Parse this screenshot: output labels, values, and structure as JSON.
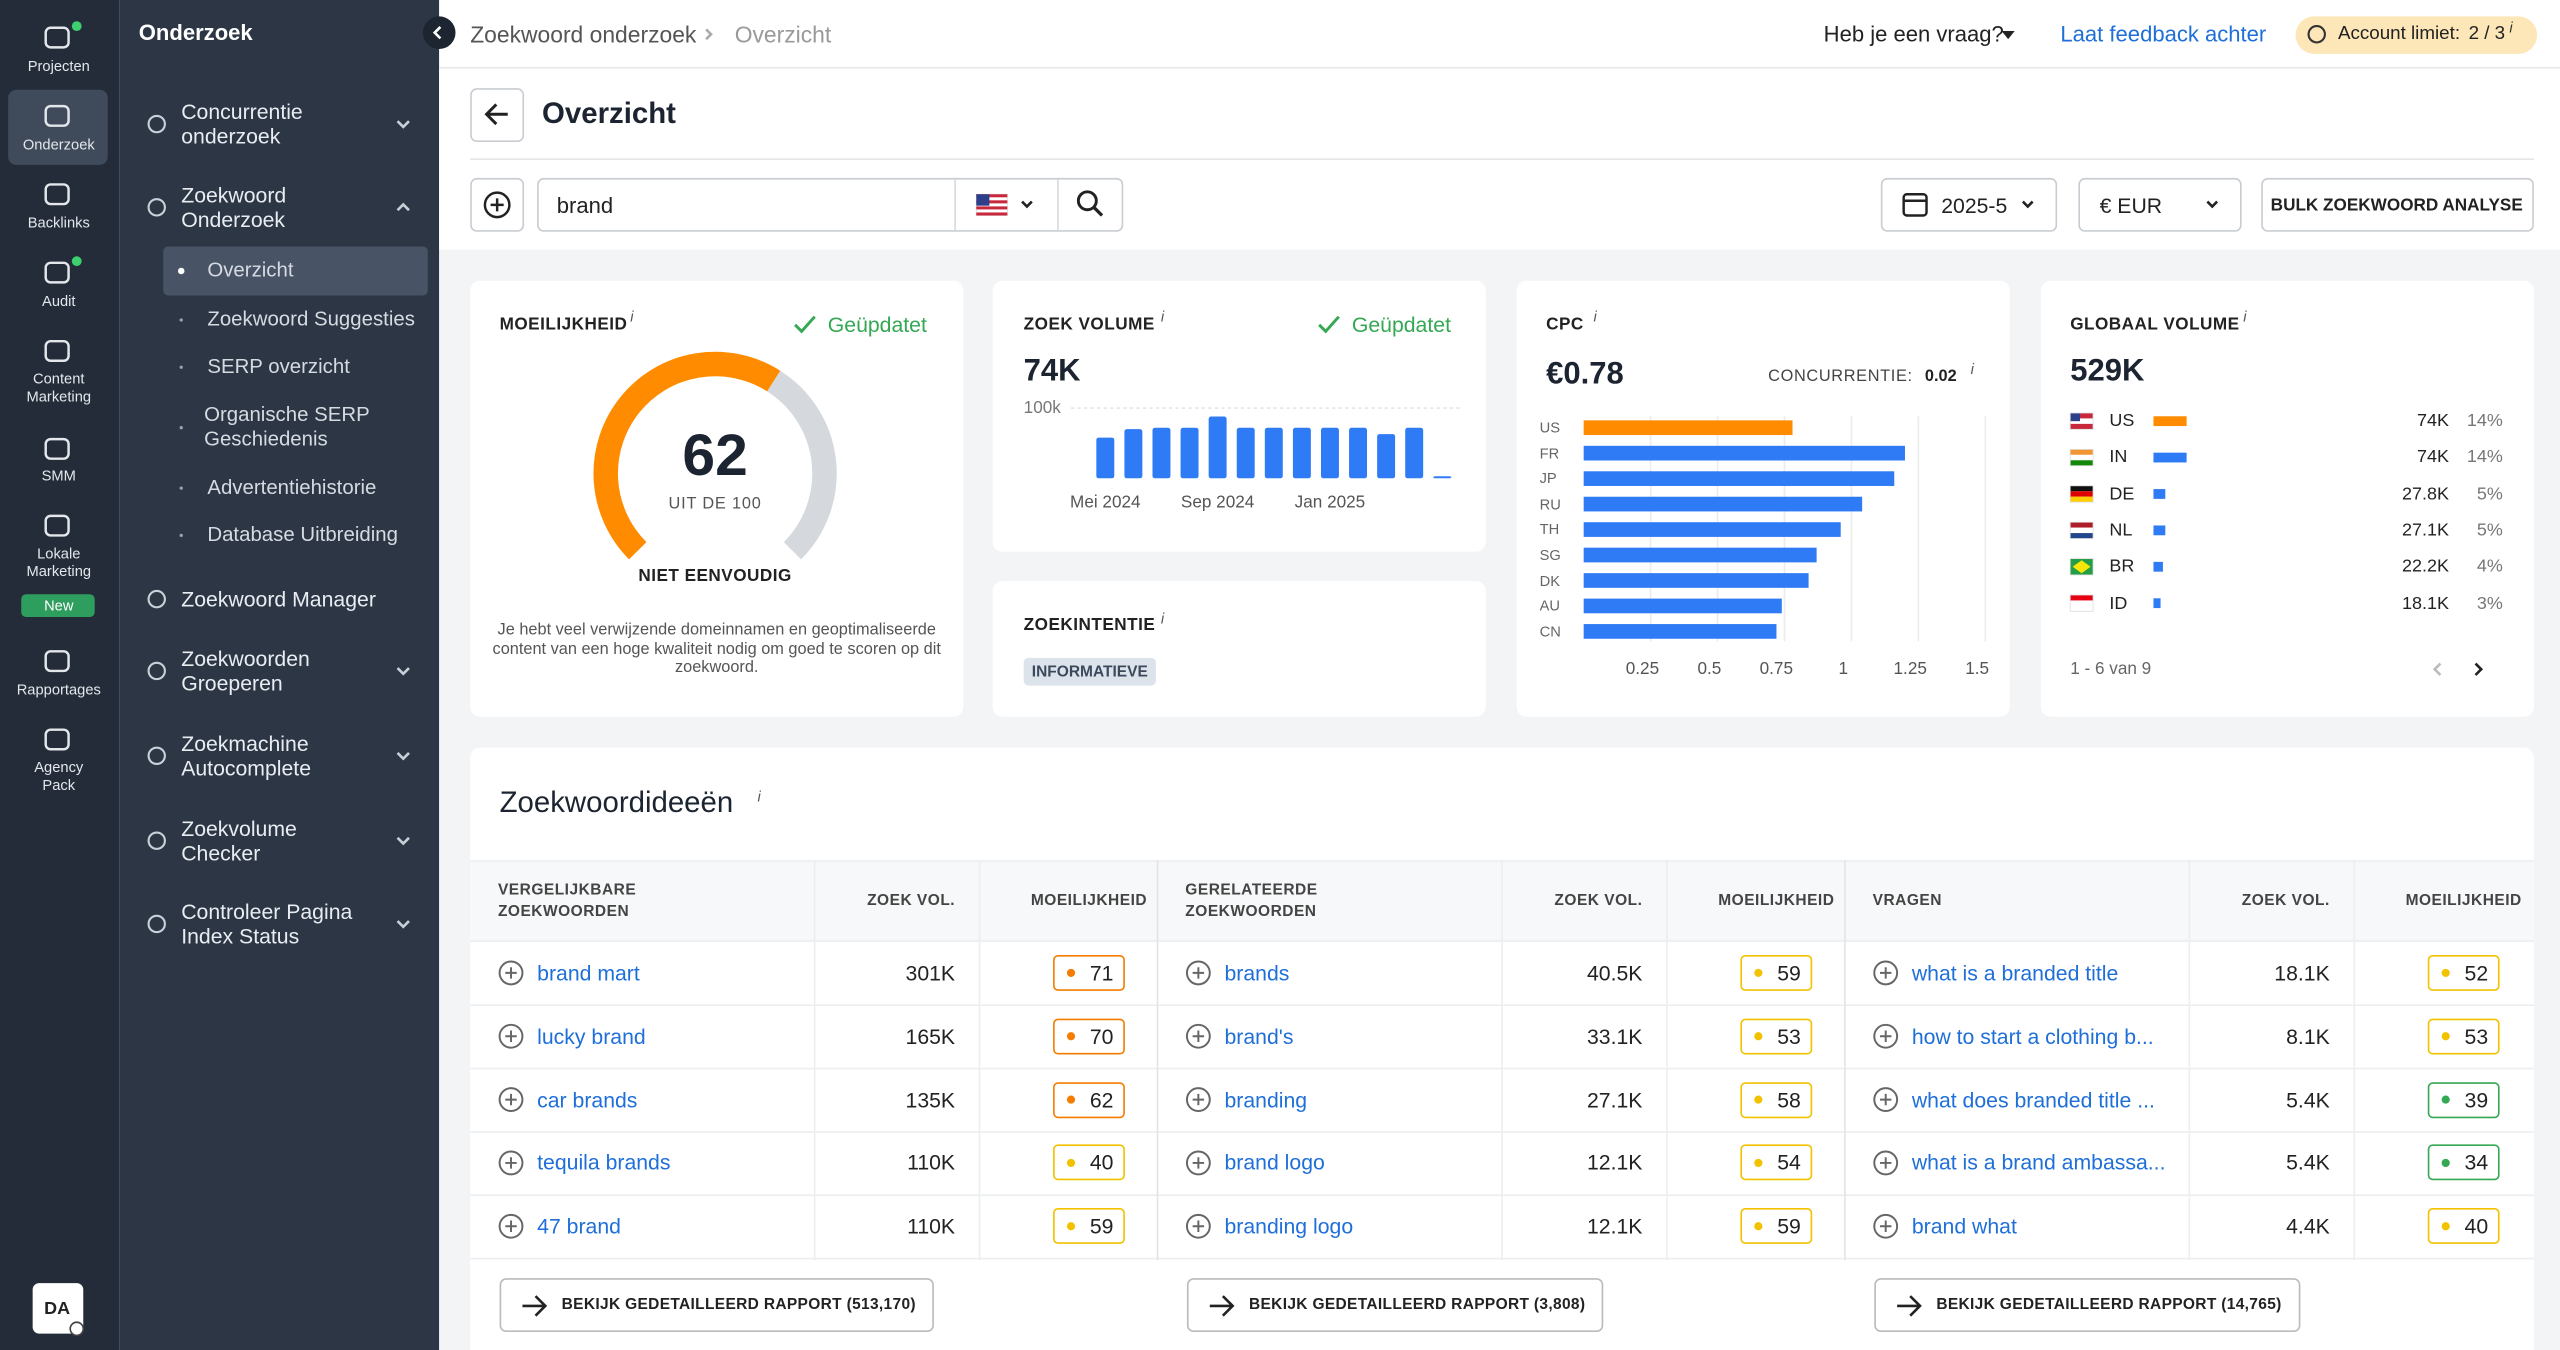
{
  "rail": {
    "items": [
      "Projecten",
      "Onderzoek",
      "Backlinks",
      "Audit",
      "Content\nMarketing",
      "SMM",
      "Lokale\nMarketing",
      "Rapportages",
      "Agency\nPack"
    ],
    "new_badge": "New",
    "avatar": "DA"
  },
  "menu": {
    "title": "Onderzoek",
    "items": [
      {
        "label": "Concurrentie\nonderzoek"
      },
      {
        "label": "Zoekwoord\nOnderzoek",
        "children": [
          "Overzicht",
          "Zoekwoord Suggesties",
          "SERP overzicht",
          "Organische SERP\nGeschiedenis",
          "Advertentiehistorie",
          "Database Uitbreiding"
        ]
      },
      {
        "label": "Zoekwoord Manager"
      },
      {
        "label": "Zoekwoorden\nGroeperen"
      },
      {
        "label": "Zoekmachine\nAutocomplete"
      },
      {
        "label": "Zoekvolume\nChecker"
      },
      {
        "label": "Controleer Pagina\nIndex Status"
      }
    ]
  },
  "header": {
    "breadcrumb": [
      "Zoekwoord onderzoek",
      "Overzicht"
    ],
    "help": "Heb je een vraag?",
    "feedback": "Laat feedback achter",
    "account_label": "Account limiet:",
    "account_value": "2 / 3"
  },
  "info": "i",
  "page_title": "Overzicht",
  "search": {
    "query": "brand",
    "date": "2025-5",
    "currency": "€ EUR",
    "bulk": "BULK ZOEKWOORD ANALYSE"
  },
  "difficulty": {
    "title": "MOEILIJKHEID",
    "status": "Geüpdatet",
    "value": 62,
    "max": 100,
    "scale_label": "UIT DE 100",
    "level": "NIET EENVOUDIG",
    "description": "Je hebt veel verwijzende domeinnamen en geoptimaliseerde content van een hoge kwaliteit nodig om goed te scoren op dit zoekwoord."
  },
  "volume": {
    "title": "ZOEK VOLUME",
    "status": "Geüpdatet",
    "total": "74K"
  },
  "intent": {
    "title": "ZOEKINTENTIE",
    "badge": "INFORMATIEVE"
  },
  "cpc": {
    "title": "CPC",
    "value": "€0.78",
    "competition_label": "CONCURRENTIE:",
    "competition": "0.02"
  },
  "chart_data": [
    {
      "type": "bar",
      "categories": [
        "Mei 2024",
        null,
        null,
        null,
        "Sep 2024",
        null,
        null,
        null,
        "Jan 2025",
        null,
        null,
        null,
        null
      ],
      "values": [
        58000,
        70000,
        72000,
        72000,
        88000,
        72000,
        72000,
        72000,
        72000,
        72000,
        63000,
        72000,
        3000
      ],
      "color": "#2f7bf5",
      "ylim": [
        0,
        100000
      ],
      "yticks": [
        {
          "value": 100000,
          "label": "100k"
        }
      ],
      "grid": true
    },
    {
      "type": "bar",
      "orientation": "horizontal",
      "categories": [
        "US",
        "FR",
        "JP",
        "RU",
        "TH",
        "SG",
        "DK",
        "AU",
        "CN"
      ],
      "values": [
        0.78,
        1.2,
        1.16,
        1.04,
        0.96,
        0.87,
        0.84,
        0.74,
        0.72
      ],
      "colors": [
        "#ff8c00",
        "#2f7bf5",
        "#2f7bf5",
        "#2f7bf5",
        "#2f7bf5",
        "#2f7bf5",
        "#2f7bf5",
        "#2f7bf5",
        "#2f7bf5"
      ],
      "xlim": [
        0,
        1.5
      ],
      "xticks": [
        0.25,
        0.5,
        0.75,
        1,
        1.25,
        1.5
      ],
      "grid": true
    }
  ],
  "global_volume": {
    "title": "GLOBAAL VOLUME",
    "total": "529K",
    "countries": [
      "US",
      "IN",
      "DE",
      "NL",
      "BR",
      "ID"
    ],
    "values": [
      74000,
      74000,
      27800,
      27100,
      22200,
      18100
    ],
    "value_labels": [
      "74K",
      "74K",
      "27.8K",
      "27.1K",
      "22.2K",
      "18.1K"
    ],
    "shares": [
      14,
      14,
      5,
      5,
      4,
      3
    ],
    "share_labels": [
      "14%",
      "14%",
      "5%",
      "5%",
      "4%",
      "3%"
    ],
    "colors": [
      "#ff8c00",
      "#2f7bf5",
      "#2f7bf5",
      "#2f7bf5",
      "#2f7bf5",
      "#2f7bf5"
    ],
    "pagination": "1 - 6 van 9"
  },
  "ideas": {
    "title": "Zoekwoordideeën",
    "groups": [
      {
        "headers": [
          "VERGELIJKBARE\nZOEKWOORDEN",
          "ZOEK VOL.",
          "MOEILIJKHEID"
        ],
        "rows": [
          [
            "brand mart",
            "301K",
            71
          ],
          [
            "lucky brand",
            "165K",
            70
          ],
          [
            "car brands",
            "135K",
            62
          ],
          [
            "tequila brands",
            "110K",
            40
          ],
          [
            "47 brand",
            "110K",
            59
          ]
        ],
        "button": "BEKIJK GEDETAILLEERD RAPPORT (513,170)"
      },
      {
        "headers": [
          "GERELATEERDE\nZOEKWOORDEN",
          "ZOEK VOL.",
          "MOEILIJKHEID"
        ],
        "rows": [
          [
            "brands",
            "40.5K",
            59
          ],
          [
            "brand's",
            "33.1K",
            53
          ],
          [
            "branding",
            "27.1K",
            58
          ],
          [
            "brand logo",
            "12.1K",
            54
          ],
          [
            "branding logo",
            "12.1K",
            59
          ]
        ],
        "button": "BEKIJK GEDETAILLEERD RAPPORT (3,808)"
      },
      {
        "headers": [
          "VRAGEN",
          "ZOEK VOL.",
          "MOEILIJKHEID"
        ],
        "rows": [
          [
            "what is a branded title",
            "18.1K",
            52
          ],
          [
            "how to start a clothing b...",
            "8.1K",
            53
          ],
          [
            "what does branded title ...",
            "5.4K",
            39
          ],
          [
            "what is a brand ambassa...",
            "5.4K",
            34
          ],
          [
            "brand what",
            "4.4K",
            40
          ]
        ],
        "button": "BEKIJK GEDETAILLEERD RAPPORT (14,765)"
      }
    ]
  }
}
